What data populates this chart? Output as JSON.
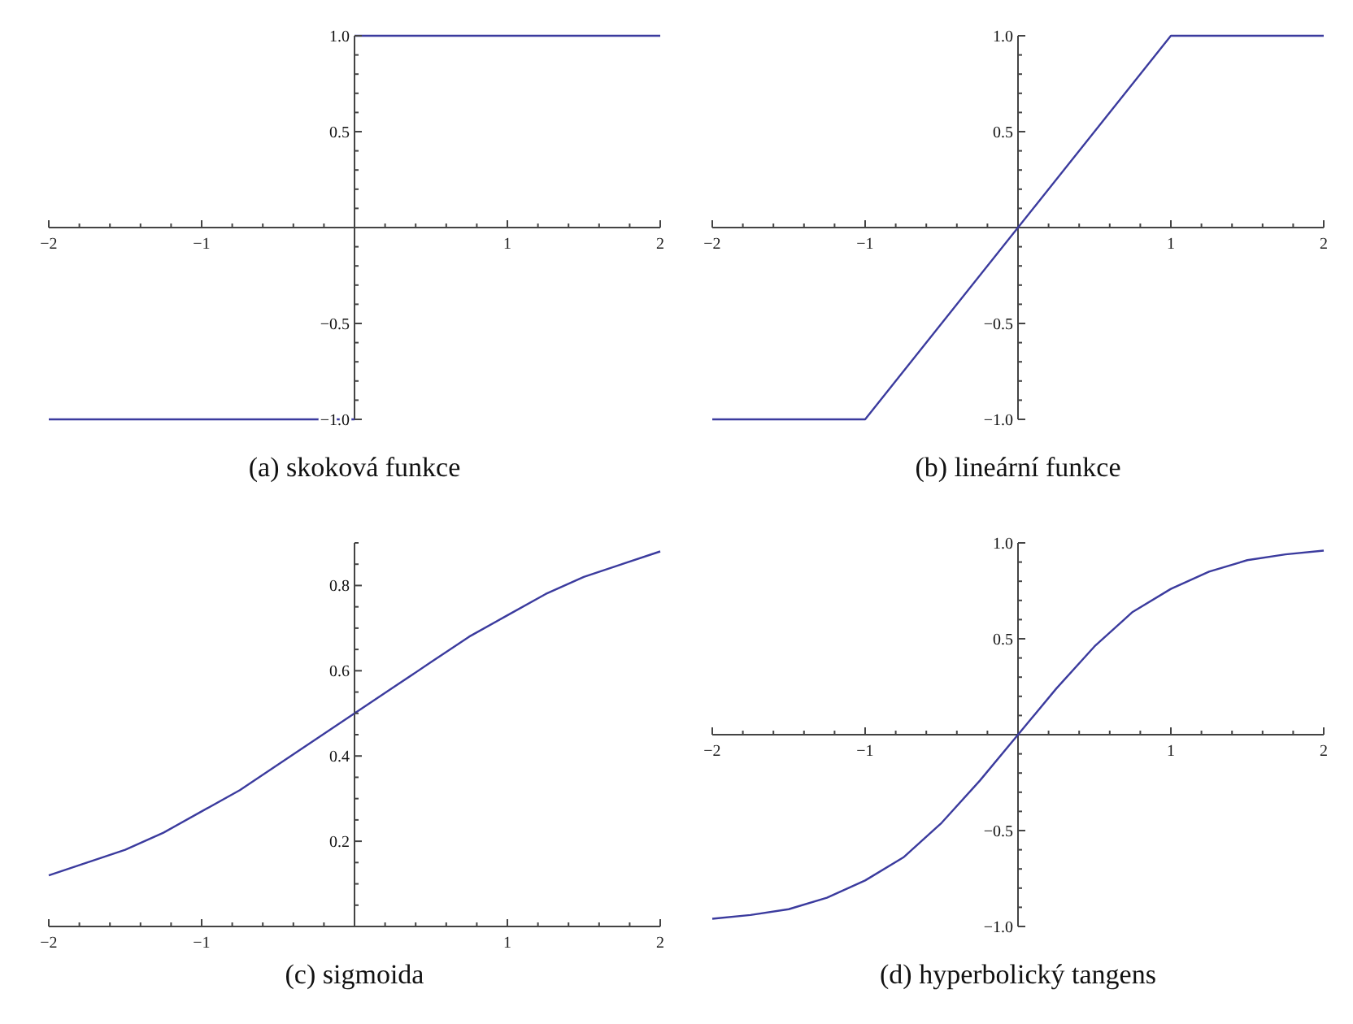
{
  "chart_data": [
    {
      "type": "line",
      "title": "(a) skoková funkce",
      "xlim": [
        -2,
        2
      ],
      "ylim": [
        -1,
        1
      ],
      "xticks": [
        -2,
        {
          "value": -1.8,
          "label": null
        },
        {
          "value": -1.6,
          "label": null
        },
        {
          "value": -1.4,
          "label": null
        },
        {
          "value": -1.2,
          "label": null
        },
        -1,
        {
          "value": -0.8,
          "label": null
        },
        {
          "value": -0.6,
          "label": null
        },
        {
          "value": -0.4,
          "label": null
        },
        {
          "value": -0.2,
          "label": null
        },
        {
          "value": 0.2,
          "label": null
        },
        {
          "value": 0.4,
          "label": null
        },
        {
          "value": 0.6,
          "label": null
        },
        {
          "value": 0.8,
          "label": null
        },
        1,
        {
          "value": 1.2,
          "label": null
        },
        {
          "value": 1.4,
          "label": null
        },
        {
          "value": 1.6,
          "label": null
        },
        {
          "value": 1.8,
          "label": null
        },
        2
      ],
      "yticks": [
        {
          "value": -1,
          "label": "−1.0"
        },
        {
          "value": -0.9,
          "label": null
        },
        {
          "value": -0.8,
          "label": null
        },
        {
          "value": -0.7,
          "label": null
        },
        {
          "value": -0.6,
          "label": null
        },
        {
          "value": -0.5,
          "label": "−0.5"
        },
        {
          "value": -0.4,
          "label": null
        },
        {
          "value": -0.3,
          "label": null
        },
        {
          "value": -0.2,
          "label": null
        },
        {
          "value": -0.1,
          "label": null
        },
        {
          "value": 0.1,
          "label": null
        },
        {
          "value": 0.2,
          "label": null
        },
        {
          "value": 0.3,
          "label": null
        },
        {
          "value": 0.4,
          "label": null
        },
        {
          "value": 0.5,
          "label": "0.5"
        },
        {
          "value": 0.6,
          "label": null
        },
        {
          "value": 0.7,
          "label": null
        },
        {
          "value": 0.8,
          "label": null
        },
        {
          "value": 0.9,
          "label": null
        },
        {
          "value": 1,
          "label": "1.0"
        }
      ],
      "series": [
        {
          "color": "#3b3b9e",
          "x": [
            -2,
            0
          ],
          "values": [
            -1,
            -1
          ]
        },
        {
          "color": "#3b3b9e",
          "x": [
            0,
            2
          ],
          "values": [
            1,
            1
          ]
        }
      ]
    },
    {
      "type": "line",
      "title": "(b) lineární funkce",
      "xlim": [
        -2,
        2
      ],
      "ylim": [
        -1,
        1
      ],
      "xticks": [
        -2,
        {
          "value": -1.8,
          "label": null
        },
        {
          "value": -1.6,
          "label": null
        },
        {
          "value": -1.4,
          "label": null
        },
        {
          "value": -1.2,
          "label": null
        },
        -1,
        {
          "value": -0.8,
          "label": null
        },
        {
          "value": -0.6,
          "label": null
        },
        {
          "value": -0.4,
          "label": null
        },
        {
          "value": -0.2,
          "label": null
        },
        {
          "value": 0.2,
          "label": null
        },
        {
          "value": 0.4,
          "label": null
        },
        {
          "value": 0.6,
          "label": null
        },
        {
          "value": 0.8,
          "label": null
        },
        1,
        {
          "value": 1.2,
          "label": null
        },
        {
          "value": 1.4,
          "label": null
        },
        {
          "value": 1.6,
          "label": null
        },
        {
          "value": 1.8,
          "label": null
        },
        2
      ],
      "yticks": [
        {
          "value": -1,
          "label": "−1.0"
        },
        {
          "value": -0.9,
          "label": null
        },
        {
          "value": -0.8,
          "label": null
        },
        {
          "value": -0.7,
          "label": null
        },
        {
          "value": -0.6,
          "label": null
        },
        {
          "value": -0.5,
          "label": "−0.5"
        },
        {
          "value": -0.4,
          "label": null
        },
        {
          "value": -0.3,
          "label": null
        },
        {
          "value": -0.2,
          "label": null
        },
        {
          "value": -0.1,
          "label": null
        },
        {
          "value": 0.1,
          "label": null
        },
        {
          "value": 0.2,
          "label": null
        },
        {
          "value": 0.3,
          "label": null
        },
        {
          "value": 0.4,
          "label": null
        },
        {
          "value": 0.5,
          "label": "0.5"
        },
        {
          "value": 0.6,
          "label": null
        },
        {
          "value": 0.7,
          "label": null
        },
        {
          "value": 0.8,
          "label": null
        },
        {
          "value": 0.9,
          "label": null
        },
        {
          "value": 1,
          "label": "1.0"
        }
      ],
      "series": [
        {
          "color": "#3b3b9e",
          "x": [
            -2,
            -1,
            1,
            2
          ],
          "values": [
            -1,
            -1,
            1,
            1
          ]
        }
      ]
    },
    {
      "type": "line",
      "title": "(c) sigmoida",
      "xlim": [
        -2,
        2
      ],
      "ylim": [
        0,
        0.9
      ],
      "xticks": [
        -2,
        {
          "value": -1.8,
          "label": null
        },
        {
          "value": -1.6,
          "label": null
        },
        {
          "value": -1.4,
          "label": null
        },
        {
          "value": -1.2,
          "label": null
        },
        -1,
        {
          "value": -0.8,
          "label": null
        },
        {
          "value": -0.6,
          "label": null
        },
        {
          "value": -0.4,
          "label": null
        },
        {
          "value": -0.2,
          "label": null
        },
        {
          "value": 0.2,
          "label": null
        },
        {
          "value": 0.4,
          "label": null
        },
        {
          "value": 0.6,
          "label": null
        },
        {
          "value": 0.8,
          "label": null
        },
        1,
        {
          "value": 1.2,
          "label": null
        },
        {
          "value": 1.4,
          "label": null
        },
        {
          "value": 1.6,
          "label": null
        },
        {
          "value": 1.8,
          "label": null
        },
        2
      ],
      "yticks": [
        {
          "value": 0.05,
          "label": null
        },
        {
          "value": 0.1,
          "label": null
        },
        {
          "value": 0.15,
          "label": null
        },
        0.2,
        {
          "value": 0.25,
          "label": null
        },
        {
          "value": 0.3,
          "label": null
        },
        {
          "value": 0.35,
          "label": null
        },
        0.4,
        {
          "value": 0.45,
          "label": null
        },
        {
          "value": 0.5,
          "label": null
        },
        {
          "value": 0.55,
          "label": null
        },
        0.6,
        {
          "value": 0.65,
          "label": null
        },
        {
          "value": 0.7,
          "label": null
        },
        {
          "value": 0.75,
          "label": null
        },
        0.8,
        {
          "value": 0.85,
          "label": null
        },
        {
          "value": 0.9,
          "label": null
        }
      ],
      "series": [
        {
          "color": "#3b3b9e",
          "x": [
            -2,
            -1.75,
            -1.5,
            -1.25,
            -1,
            -0.75,
            -0.5,
            -0.25,
            0,
            0.25,
            0.5,
            0.75,
            1,
            1.25,
            1.5,
            1.75,
            2
          ],
          "values": [
            0.12,
            0.15,
            0.18,
            0.22,
            0.27,
            0.32,
            0.38,
            0.44,
            0.5,
            0.56,
            0.62,
            0.68,
            0.73,
            0.78,
            0.82,
            0.85,
            0.88
          ]
        }
      ]
    },
    {
      "type": "line",
      "title": "(d) hyperbolický tangens",
      "xlim": [
        -2,
        2
      ],
      "ylim": [
        -1,
        1
      ],
      "xticks": [
        -2,
        {
          "value": -1.8,
          "label": null
        },
        {
          "value": -1.6,
          "label": null
        },
        {
          "value": -1.4,
          "label": null
        },
        {
          "value": -1.2,
          "label": null
        },
        -1,
        {
          "value": -0.8,
          "label": null
        },
        {
          "value": -0.6,
          "label": null
        },
        {
          "value": -0.4,
          "label": null
        },
        {
          "value": -0.2,
          "label": null
        },
        {
          "value": 0.2,
          "label": null
        },
        {
          "value": 0.4,
          "label": null
        },
        {
          "value": 0.6,
          "label": null
        },
        {
          "value": 0.8,
          "label": null
        },
        1,
        {
          "value": 1.2,
          "label": null
        },
        {
          "value": 1.4,
          "label": null
        },
        {
          "value": 1.6,
          "label": null
        },
        {
          "value": 1.8,
          "label": null
        },
        2
      ],
      "yticks": [
        {
          "value": -1,
          "label": "−1.0"
        },
        {
          "value": -0.9,
          "label": null
        },
        {
          "value": -0.8,
          "label": null
        },
        {
          "value": -0.7,
          "label": null
        },
        {
          "value": -0.6,
          "label": null
        },
        {
          "value": -0.5,
          "label": "−0.5"
        },
        {
          "value": -0.4,
          "label": null
        },
        {
          "value": -0.3,
          "label": null
        },
        {
          "value": -0.2,
          "label": null
        },
        {
          "value": -0.1,
          "label": null
        },
        {
          "value": 0.1,
          "label": null
        },
        {
          "value": 0.2,
          "label": null
        },
        {
          "value": 0.3,
          "label": null
        },
        {
          "value": 0.4,
          "label": null
        },
        {
          "value": 0.5,
          "label": "0.5"
        },
        {
          "value": 0.6,
          "label": null
        },
        {
          "value": 0.7,
          "label": null
        },
        {
          "value": 0.8,
          "label": null
        },
        {
          "value": 0.9,
          "label": null
        },
        {
          "value": 1,
          "label": "1.0"
        }
      ],
      "series": [
        {
          "color": "#3b3b9e",
          "x": [
            -2,
            -1.75,
            -1.5,
            -1.25,
            -1,
            -0.75,
            -0.5,
            -0.25,
            0,
            0.25,
            0.5,
            0.75,
            1,
            1.25,
            1.5,
            1.75,
            2
          ],
          "values": [
            -0.96,
            -0.94,
            -0.91,
            -0.85,
            -0.76,
            -0.64,
            -0.46,
            -0.24,
            0,
            0.24,
            0.46,
            0.64,
            0.76,
            0.85,
            0.91,
            0.94,
            0.96
          ]
        }
      ]
    }
  ]
}
